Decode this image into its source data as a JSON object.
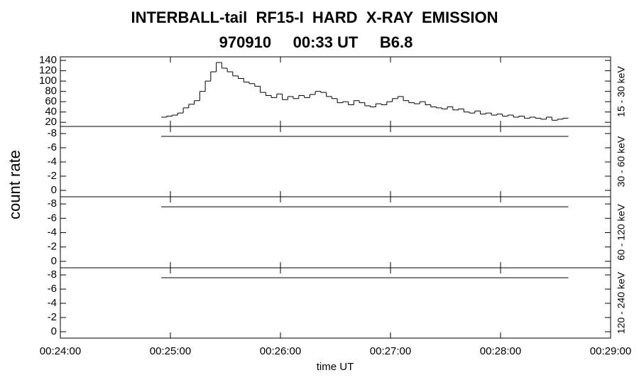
{
  "title": "INTERBALL-tail  RF15-I  HARD  X-RAY  EMISSION",
  "subtitle": "970910     00:33 UT     B6.8",
  "xlabel": "time UT",
  "ylabel": "count rate",
  "xlim": [
    0,
    300
  ],
  "xticks": [
    {
      "value": 0,
      "label": "00:24:00"
    },
    {
      "value": 60,
      "label": "00:25:00"
    },
    {
      "value": 120,
      "label": "00:26:00"
    },
    {
      "value": 180,
      "label": "00:27:00"
    },
    {
      "value": 240,
      "label": "00:28:00"
    },
    {
      "value": 300,
      "label": "00:29:00"
    }
  ],
  "chart_data": [
    {
      "type": "histogram",
      "label": "15 - 30 keV",
      "ylim": [
        12,
        147
      ],
      "yticks": [
        20,
        40,
        60,
        80,
        100,
        120,
        140
      ],
      "bins": [
        55,
        58,
        61,
        64,
        67,
        70,
        73,
        76,
        79,
        82,
        85,
        88,
        91,
        94,
        97,
        100,
        103,
        106,
        109,
        112,
        115,
        118,
        121,
        124,
        127,
        130,
        133,
        136,
        139,
        142,
        145,
        148,
        151,
        154,
        157,
        160,
        163,
        166,
        169,
        172,
        175,
        178,
        181,
        184,
        187,
        190,
        193,
        196,
        199,
        202,
        205,
        208,
        211,
        214,
        217,
        220,
        223,
        226,
        229,
        232,
        235,
        238,
        241,
        244,
        247,
        250,
        253,
        256,
        259,
        262,
        265,
        268,
        271,
        274,
        277
      ],
      "values": [
        30,
        32,
        34,
        38,
        48,
        55,
        62,
        80,
        100,
        118,
        136,
        125,
        118,
        110,
        105,
        98,
        95,
        90,
        78,
        72,
        68,
        75,
        64,
        70,
        66,
        72,
        68,
        74,
        80,
        78,
        70,
        66,
        58,
        60,
        54,
        62,
        58,
        52,
        50,
        56,
        54,
        60,
        66,
        70,
        62,
        58,
        56,
        60,
        54,
        50,
        48,
        46,
        50,
        44,
        46,
        40,
        38,
        42,
        36,
        38,
        34,
        36,
        32,
        34,
        30,
        32,
        28,
        30,
        28,
        26,
        30,
        24,
        26,
        28
      ]
    },
    {
      "type": "line",
      "label": "30 - 60 keV",
      "ylim": [
        0.9,
        -9
      ],
      "yticks": [
        -8,
        -6,
        -4,
        -2,
        0
      ],
      "x": [
        55,
        277
      ],
      "values": [
        -7.6,
        -7.6
      ]
    },
    {
      "type": "line",
      "label": "60 - 120 keV",
      "ylim": [
        0.9,
        -9
      ],
      "yticks": [
        -8,
        -6,
        -4,
        -2,
        0
      ],
      "x": [
        55,
        277
      ],
      "values": [
        -7.6,
        -7.6
      ]
    },
    {
      "type": "line",
      "label": "120 - 240 keV",
      "ylim": [
        0.9,
        -9
      ],
      "yticks": [
        -8,
        -6,
        -4,
        -2,
        0
      ],
      "x": [
        55,
        277
      ],
      "values": [
        -7.6,
        -7.6
      ]
    }
  ]
}
